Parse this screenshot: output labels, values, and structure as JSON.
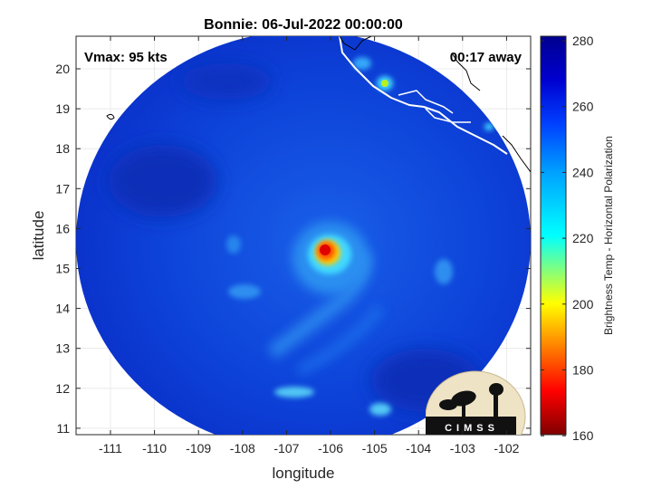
{
  "title": "Bonnie: 06-Jul-2022 00:00:00",
  "overlay": {
    "vmax": "Vmax: 95 kts",
    "away": "00:17 away"
  },
  "x_axis": {
    "label": "longitude",
    "ticks": [
      "-111",
      "-110",
      "-109",
      "-108",
      "-107",
      "-106",
      "-105",
      "-104",
      "-103",
      "-102"
    ]
  },
  "y_axis": {
    "label": "latitude",
    "ticks": [
      "20",
      "19",
      "18",
      "17",
      "16",
      "15",
      "14",
      "13",
      "12",
      "11"
    ]
  },
  "colorbar": {
    "label": "Brightness Temp - Horizontal Polarization",
    "ticks": [
      "280",
      "260",
      "240",
      "220",
      "200",
      "180",
      "160"
    ],
    "colormap": [
      "#7f0000",
      "#ff0000",
      "#ff8000",
      "#ffff00",
      "#80ff80",
      "#00ffff",
      "#0080ff",
      "#0000ff",
      "#00008f"
    ]
  },
  "logo": {
    "text": "CIMSS"
  }
}
